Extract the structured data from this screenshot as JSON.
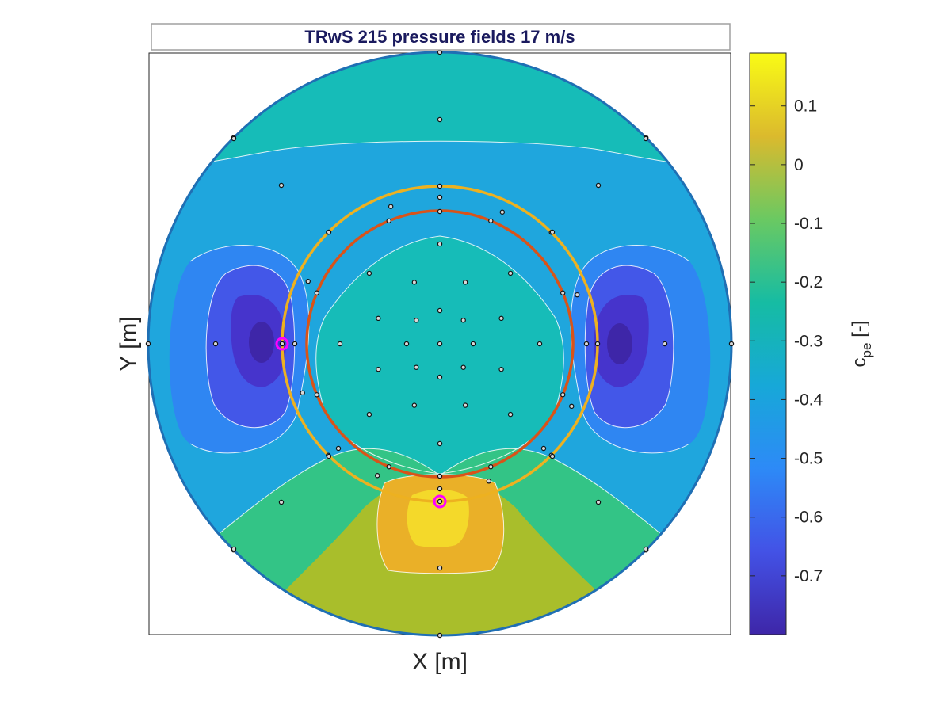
{
  "chart_data": {
    "type": "heatmap",
    "title": "TRwS 215  pressure fields 17 m/s",
    "xlabel": "X [m]",
    "ylabel": "Y [m]",
    "colorbar": {
      "label_main": "c",
      "label_sub": "pe",
      "label_unit": " [-]",
      "range": [
        -0.8,
        0.19
      ],
      "ticks": [
        0.1,
        0,
        -0.1,
        -0.2,
        -0.3,
        -0.4,
        -0.5,
        -0.6,
        -0.7
      ],
      "tick_labels": [
        "0.1",
        "0",
        "-0.1",
        "-0.2",
        "-0.3",
        "-0.4",
        "-0.5",
        "-0.6",
        "-0.7"
      ],
      "colormap": "parula"
    },
    "legend": "none",
    "grid": false,
    "field_features": [
      {
        "name": "low-left",
        "value": -0.78
      },
      {
        "name": "low-right",
        "value": -0.76
      },
      {
        "name": "high-bottom",
        "value": 0.14
      },
      {
        "name": "bottom-band",
        "value": -0.12
      },
      {
        "name": "center",
        "value": -0.32
      },
      {
        "name": "outer-ring",
        "value": -0.45
      }
    ],
    "colors": {
      "outer_boundary": "#1f6fb4",
      "ring_outer": "#edb120",
      "ring_inner": "#d95319",
      "highlight_marker": "#ff00ff",
      "contour_line": "#ffffff"
    }
  }
}
